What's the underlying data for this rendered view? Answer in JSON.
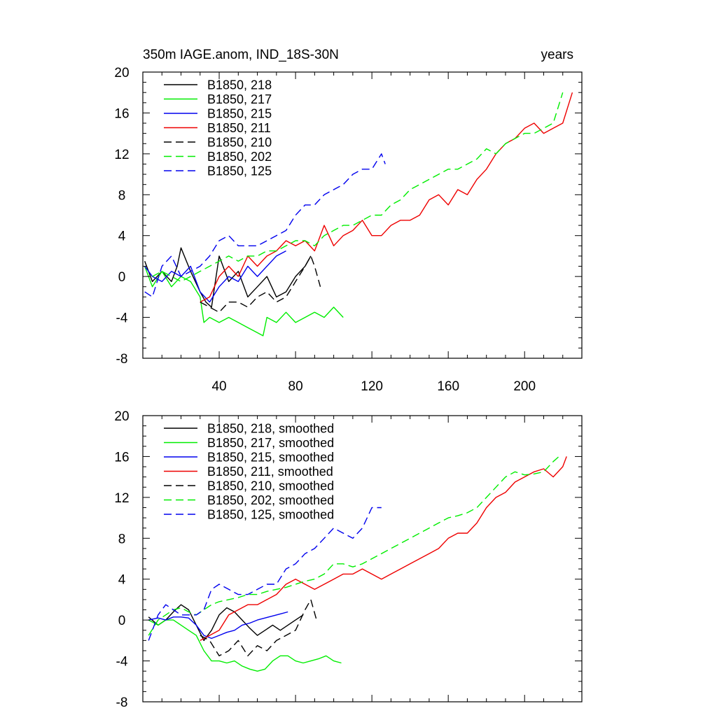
{
  "chart_data": [
    {
      "type": "line",
      "title_left": "350m IAGE.anom, IND_18S-30N",
      "title_right": "years",
      "xlabel": "",
      "ylabel": "",
      "xlim": [
        0,
        230
      ],
      "ylim": [
        -8,
        20
      ],
      "x_ticks": [
        40,
        80,
        120,
        160,
        200
      ],
      "x_tick_labels": [
        "40",
        "80",
        "120",
        "160",
        "200"
      ],
      "y_ticks": [
        -8,
        -4,
        0,
        4,
        8,
        12,
        16,
        20
      ],
      "y_tick_labels": [
        "-8",
        "-4",
        "0",
        "4",
        "8",
        "12",
        "16",
        "20"
      ],
      "legend_position": "top-left",
      "series": [
        {
          "name": "B1850, 218",
          "color": "#000000",
          "dash": "solid",
          "x": [
            1,
            5,
            10,
            15,
            18,
            20,
            25,
            30,
            33,
            36,
            40,
            45,
            50,
            55,
            60,
            65,
            70,
            75,
            80,
            85,
            88
          ],
          "y": [
            1.5,
            -0.5,
            0.5,
            -0.5,
            1,
            2.8,
            0.5,
            -1.5,
            -2.5,
            -3,
            2,
            -0.5,
            0.5,
            -2,
            -1,
            0,
            -2,
            -1.5,
            0,
            1,
            2
          ]
        },
        {
          "name": "B1850, 217",
          "color": "#00ee00",
          "dash": "solid",
          "x": [
            1,
            5,
            10,
            15,
            20,
            25,
            30,
            32,
            35,
            40,
            45,
            50,
            55,
            60,
            63,
            65,
            70,
            75,
            80,
            85,
            90,
            95,
            100,
            105
          ],
          "y": [
            1,
            -1,
            0.5,
            -1,
            0,
            -0.5,
            -2,
            -4.5,
            -4,
            -4.5,
            -4,
            -4.5,
            -5,
            -5.5,
            -5.8,
            -4,
            -4.5,
            -3.5,
            -4.5,
            -4,
            -3.5,
            -4,
            -3,
            -4
          ]
        },
        {
          "name": "B1850, 215",
          "color": "#0000ee",
          "dash": "solid",
          "x": [
            1,
            5,
            10,
            15,
            20,
            25,
            30,
            35,
            40,
            45,
            50,
            55,
            60,
            65,
            70,
            75
          ],
          "y": [
            1,
            0,
            -0.5,
            0.5,
            0,
            1,
            -1.5,
            -2.5,
            -1,
            0,
            -0.5,
            1,
            0,
            1,
            2,
            2.5
          ]
        },
        {
          "name": "B1850, 211",
          "color": "#ee0000",
          "dash": "solid",
          "x": [
            30,
            35,
            40,
            45,
            50,
            55,
            60,
            65,
            70,
            75,
            80,
            85,
            90,
            95,
            100,
            105,
            110,
            115,
            120,
            125,
            130,
            135,
            140,
            145,
            150,
            155,
            160,
            165,
            170,
            175,
            180,
            185,
            190,
            195,
            200,
            205,
            210,
            215,
            220,
            225
          ],
          "y": [
            -2.5,
            -2,
            0,
            1,
            0,
            2,
            1,
            2,
            2.5,
            3.5,
            3,
            3.5,
            2.5,
            5,
            3,
            4,
            4.5,
            5.5,
            4,
            4,
            5,
            5.5,
            5.5,
            6,
            7.5,
            8,
            7,
            8.5,
            8,
            9.5,
            10.5,
            12,
            13,
            13.5,
            14.5,
            15,
            14,
            14.5,
            15,
            18
          ]
        },
        {
          "name": "B1850, 210",
          "color": "#000000",
          "dash": "dashed",
          "x": [
            30,
            35,
            40,
            45,
            50,
            55,
            60,
            65,
            70,
            75,
            80,
            85,
            88,
            90,
            93
          ],
          "y": [
            -2.5,
            -3,
            -3.5,
            -2.5,
            -2.5,
            -3,
            -2,
            -1.5,
            -2.5,
            -2,
            -0.5,
            1,
            2,
            1,
            -1
          ]
        },
        {
          "name": "B1850, 202",
          "color": "#00ee00",
          "dash": "dashed",
          "x": [
            5,
            10,
            15,
            20,
            25,
            30,
            35,
            40,
            45,
            50,
            55,
            60,
            65,
            70,
            75,
            80,
            85,
            90,
            95,
            100,
            105,
            110,
            115,
            120,
            125,
            130,
            135,
            140,
            145,
            150,
            155,
            160,
            165,
            170,
            175,
            180,
            185,
            190,
            195,
            200,
            205,
            210,
            215,
            220
          ],
          "y": [
            0,
            0.5,
            0,
            -0.5,
            0,
            0.5,
            1,
            1.5,
            2,
            1.5,
            2,
            2,
            2.5,
            2.5,
            3,
            3.5,
            3.5,
            3,
            4,
            4.5,
            5,
            5,
            5.5,
            6,
            6,
            7,
            7.5,
            8.5,
            9,
            9.5,
            10,
            10.5,
            10.5,
            11,
            11.5,
            12.5,
            12,
            13,
            13.5,
            14,
            14,
            14.5,
            15,
            18
          ]
        },
        {
          "name": "B1850, 125",
          "color": "#0000ee",
          "dash": "dashed",
          "x": [
            1,
            5,
            10,
            15,
            20,
            25,
            30,
            35,
            40,
            45,
            50,
            55,
            60,
            65,
            70,
            75,
            80,
            85,
            90,
            95,
            100,
            105,
            110,
            115,
            120,
            125,
            127
          ],
          "y": [
            -1.5,
            -2,
            1,
            2,
            0,
            0.5,
            1,
            2,
            3.5,
            4,
            3,
            3,
            3,
            3.5,
            4,
            4.5,
            6,
            7,
            7,
            8,
            8.5,
            9,
            10,
            10.5,
            10.5,
            12,
            11
          ]
        }
      ]
    },
    {
      "type": "line",
      "xlim": [
        0,
        230
      ],
      "ylim": [
        -8,
        20
      ],
      "x_ticks": [
        40,
        80,
        120,
        160,
        200
      ],
      "y_ticks": [
        -8,
        -4,
        0,
        4,
        8,
        12,
        16,
        20
      ],
      "y_tick_labels": [
        "-8",
        "-4",
        "0",
        "4",
        "8",
        "12",
        "16",
        "20"
      ],
      "legend_position": "top-left",
      "series": [
        {
          "name": "B1850, 218, smoothed",
          "color": "#000000",
          "dash": "solid",
          "x": [
            3,
            8,
            12,
            16,
            20,
            24,
            28,
            32,
            36,
            40,
            44,
            48,
            52,
            56,
            60,
            64,
            68,
            72,
            76,
            80,
            84
          ],
          "y": [
            0.3,
            -0.5,
            0,
            0.8,
            1.5,
            1,
            -0.5,
            -2,
            -1,
            0.5,
            1.2,
            0.8,
            0,
            -0.8,
            -1.5,
            -1,
            -0.5,
            -1,
            -0.5,
            0,
            0.5
          ]
        },
        {
          "name": "B1850, 217, smoothed",
          "color": "#00ee00",
          "dash": "solid",
          "x": [
            3,
            8,
            12,
            16,
            20,
            24,
            28,
            32,
            36,
            40,
            44,
            48,
            52,
            56,
            60,
            64,
            68,
            72,
            76,
            80,
            84,
            88,
            92,
            96,
            100,
            104
          ],
          "y": [
            0,
            -0.5,
            0,
            0,
            -0.5,
            -1,
            -1.5,
            -3,
            -4,
            -4,
            -4.2,
            -4,
            -4.5,
            -4.8,
            -5,
            -4.8,
            -4,
            -3.5,
            -3.5,
            -4,
            -4.2,
            -4,
            -3.8,
            -3.5,
            -4,
            -4.2
          ]
        },
        {
          "name": "B1850, 215, smoothed",
          "color": "#0000ee",
          "dash": "solid",
          "x": [
            3,
            8,
            12,
            16,
            20,
            24,
            28,
            32,
            36,
            40,
            44,
            48,
            52,
            56,
            60,
            64,
            68,
            72,
            76
          ],
          "y": [
            0,
            0.2,
            0,
            0.3,
            0.3,
            0.2,
            -0.5,
            -1.5,
            -1.8,
            -1.5,
            -1.2,
            -1,
            -0.5,
            -0.3,
            0,
            0.2,
            0.4,
            0.6,
            0.8
          ]
        },
        {
          "name": "B1850, 211, smoothed",
          "color": "#ee0000",
          "dash": "solid",
          "x": [
            30,
            35,
            40,
            45,
            50,
            55,
            60,
            65,
            70,
            75,
            80,
            85,
            90,
            95,
            100,
            105,
            110,
            115,
            120,
            125,
            130,
            135,
            140,
            145,
            150,
            155,
            160,
            165,
            170,
            175,
            180,
            185,
            190,
            195,
            200,
            205,
            210,
            215,
            220,
            222
          ],
          "y": [
            -2,
            -1.5,
            -1,
            0.5,
            1,
            1.5,
            1.5,
            2,
            2.5,
            3.5,
            4,
            3.5,
            3,
            3.5,
            4,
            4.5,
            4.5,
            5,
            4.5,
            4,
            4.5,
            5,
            5.5,
            6,
            6.5,
            7,
            8,
            8.5,
            8.5,
            9.5,
            11,
            12,
            12.5,
            13.5,
            14,
            14.5,
            14.8,
            14,
            15,
            16
          ]
        },
        {
          "name": "B1850, 210, smoothed",
          "color": "#000000",
          "dash": "dashed",
          "x": [
            30,
            35,
            40,
            45,
            50,
            55,
            60,
            65,
            70,
            75,
            80,
            85,
            88,
            91
          ],
          "y": [
            -1.5,
            -2,
            -3.5,
            -3,
            -2,
            -3.5,
            -2.5,
            -3,
            -2,
            -1.5,
            -1,
            1,
            2,
            0
          ]
        },
        {
          "name": "B1850, 202, smoothed",
          "color": "#00ee00",
          "dash": "dashed",
          "x": [
            3,
            8,
            12,
            16,
            20,
            24,
            28,
            32,
            36,
            40,
            45,
            50,
            55,
            60,
            65,
            70,
            75,
            80,
            85,
            90,
            95,
            100,
            105,
            110,
            115,
            120,
            125,
            130,
            135,
            140,
            145,
            150,
            155,
            160,
            165,
            170,
            175,
            180,
            185,
            190,
            195,
            200,
            205,
            210,
            215,
            218
          ],
          "y": [
            -1.5,
            0,
            0.5,
            1,
            1.2,
            0.8,
            0.5,
            1,
            1.5,
            1.8,
            2,
            2.2,
            2.5,
            2.5,
            2.8,
            3,
            3.2,
            3.5,
            3.8,
            4,
            4.5,
            5.5,
            5.5,
            5.2,
            5.5,
            6,
            6.5,
            7,
            7.5,
            8,
            8.5,
            9,
            9.5,
            10,
            10.2,
            10.5,
            11,
            12,
            13,
            14,
            14.5,
            14.2,
            14.3,
            14.5,
            15.5,
            16
          ]
        },
        {
          "name": "B1850, 125, smoothed",
          "color": "#0000ee",
          "dash": "dashed",
          "x": [
            3,
            8,
            12,
            16,
            20,
            24,
            28,
            32,
            36,
            40,
            45,
            50,
            55,
            60,
            65,
            70,
            75,
            80,
            85,
            90,
            95,
            100,
            105,
            110,
            115,
            120,
            125
          ],
          "y": [
            -2,
            0.5,
            1.5,
            1,
            0.5,
            0.5,
            0.5,
            1,
            3,
            3.5,
            3,
            2.5,
            2.5,
            3,
            3.5,
            3.5,
            5,
            5.5,
            6.5,
            7,
            8,
            9,
            8.5,
            8,
            9,
            11,
            11
          ]
        }
      ]
    }
  ]
}
